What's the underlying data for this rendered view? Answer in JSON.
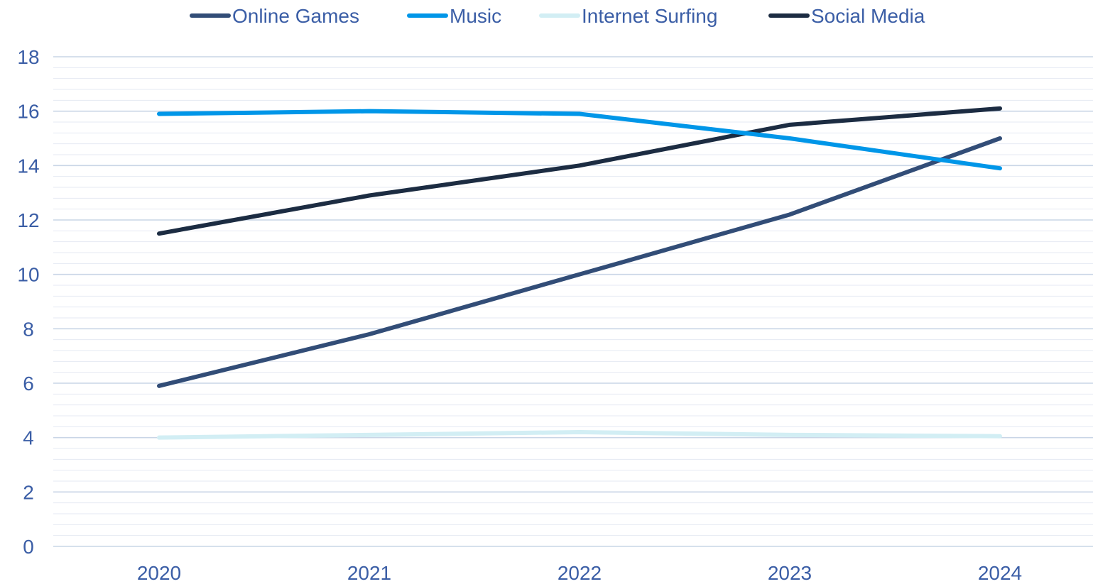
{
  "chart_data": {
    "type": "line",
    "categories": [
      "2020",
      "2021",
      "2022",
      "2023",
      "2024"
    ],
    "series": [
      {
        "name": "Online Games",
        "values": [
          5.9,
          7.8,
          10.0,
          12.2,
          15.0
        ]
      },
      {
        "name": "Music",
        "values": [
          15.9,
          16.0,
          15.9,
          15.0,
          13.9
        ]
      },
      {
        "name": "Internet Surfing",
        "values": [
          4.0,
          4.1,
          4.2,
          4.1,
          4.05
        ]
      },
      {
        "name": "Social Media",
        "values": [
          11.5,
          12.9,
          14.0,
          15.5,
          16.1
        ]
      }
    ],
    "ylim": [
      0,
      18
    ],
    "y_ticks": [
      "0",
      "2",
      "4",
      "6",
      "8",
      "10",
      "12",
      "14",
      "16",
      "18"
    ],
    "grid": true,
    "legend_position": "top"
  },
  "colors": {
    "text": "#44546a",
    "axis_text": "#3b5ea6",
    "grid_major": "#c9d5e6",
    "grid_minor": "#e4eaf3",
    "series": [
      "#324d77",
      "#0096e8",
      "#d2eef4",
      "#1c2c42"
    ]
  }
}
